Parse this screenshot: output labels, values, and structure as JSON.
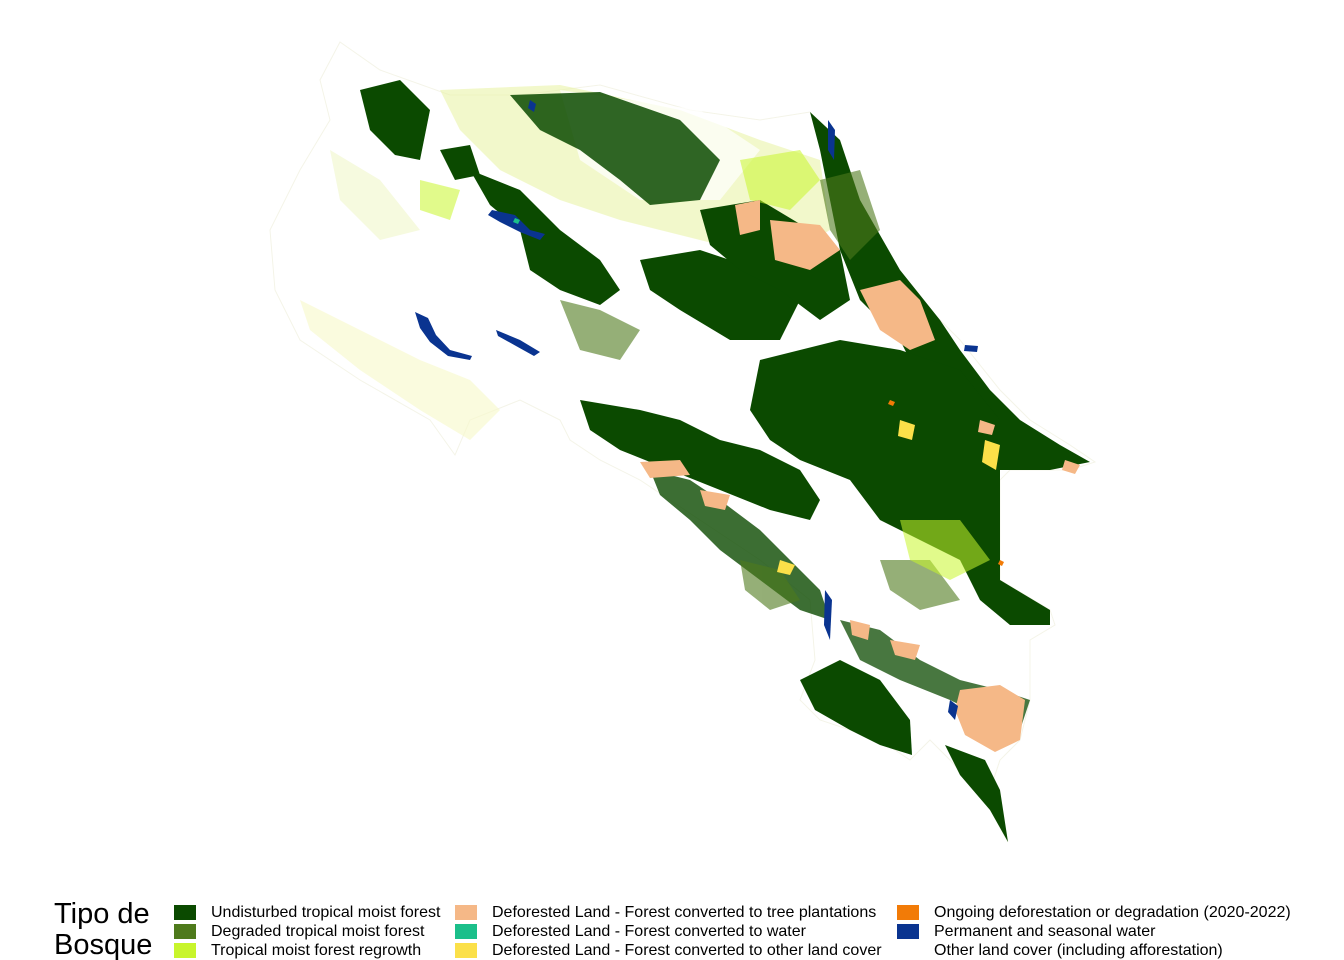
{
  "legend": {
    "title": "Tipo de\nBosque",
    "items": [
      {
        "label": "Undisturbed tropical moist forest",
        "color": "#0b4a00"
      },
      {
        "label": "Degraded tropical moist forest",
        "color": "#4e7a1c"
      },
      {
        "label": "Tropical moist forest regrowth",
        "color": "#c8f52c"
      },
      {
        "label": "Deforested Land - Forest converted to tree plantations",
        "color": "#f5b887"
      },
      {
        "label": "Deforested Land - Forest converted to water",
        "color": "#1bbf8a"
      },
      {
        "label": "Deforested Land - Forest converted to other land cover",
        "color": "#fbe049"
      },
      {
        "label": "Ongoing deforestation or degradation (2020-2022)",
        "color": "#f27b07"
      },
      {
        "label": "Permanent and seasonal water",
        "color": "#0a3490"
      },
      {
        "label": "Other land cover (including afforestation)",
        "color": "#ffffff"
      }
    ]
  }
}
